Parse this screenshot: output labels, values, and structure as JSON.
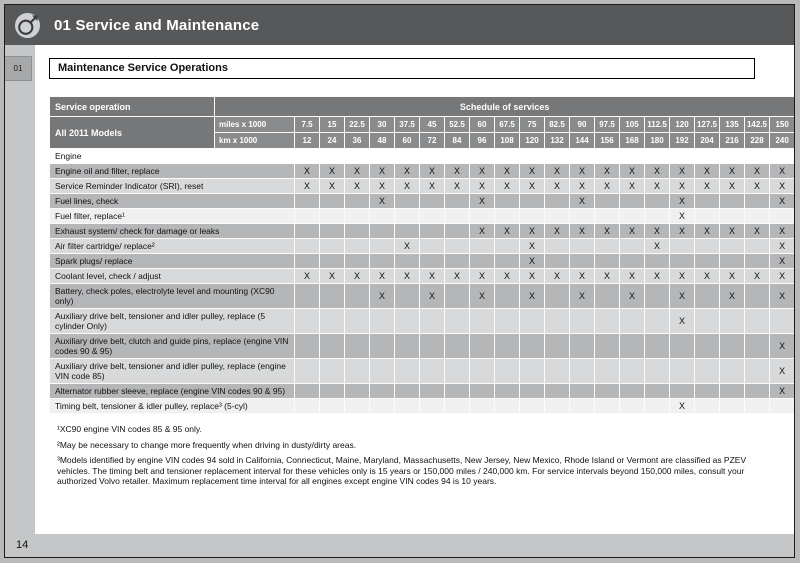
{
  "colors": {
    "header_bar": "#57585a",
    "page_gray": "#c5c6c8",
    "table_header_dark": "#757779",
    "table_header_mid": "#8a8b8d",
    "row_dark": "#b5b6b8",
    "row_light": "#d8d9da",
    "row_white": "#f0f0f0"
  },
  "header": {
    "title": "01 Service and Maintenance",
    "icon": "volvo-iron-mark-icon"
  },
  "side_tab_label": "01",
  "page_number": "14",
  "section_title": "Maintenance Service Operations",
  "table": {
    "corner_header": "Service operation",
    "models_header": "All 2011 Models",
    "schedule_header": "Schedule of services",
    "miles_label": "miles x 1000",
    "km_label": "km x 1000",
    "miles": [
      "7.5",
      "15",
      "22.5",
      "30",
      "37.5",
      "45",
      "52.5",
      "60",
      "67.5",
      "75",
      "82.5",
      "90",
      "97.5",
      "105",
      "112.5",
      "120",
      "127.5",
      "135",
      "142.5",
      "150"
    ],
    "km": [
      "12",
      "24",
      "36",
      "48",
      "60",
      "72",
      "84",
      "96",
      "108",
      "120",
      "132",
      "144",
      "156",
      "168",
      "180",
      "192",
      "204",
      "216",
      "228",
      "240"
    ],
    "mark": "X",
    "rows": [
      {
        "type": "section",
        "label": "Engine"
      },
      {
        "label": "Engine oil and filter, replace",
        "shade": "dark",
        "marks": [
          "X",
          "X",
          "X",
          "X",
          "X",
          "X",
          "X",
          "X",
          "X",
          "X",
          "X",
          "X",
          "X",
          "X",
          "X",
          "X",
          "X",
          "X",
          "X",
          "X"
        ]
      },
      {
        "label": "Service Reminder Indicator (SRI), reset",
        "shade": "light",
        "marks": [
          "X",
          "X",
          "X",
          "X",
          "X",
          "X",
          "X",
          "X",
          "X",
          "X",
          "X",
          "X",
          "X",
          "X",
          "X",
          "X",
          "X",
          "X",
          "X",
          "X"
        ]
      },
      {
        "label": "Fuel lines, check",
        "shade": "dark",
        "marks": [
          "",
          "",
          "",
          "X",
          "",
          "",
          "",
          "X",
          "",
          "",
          "",
          "X",
          "",
          "",
          "",
          "X",
          "",
          "",
          "",
          "X"
        ]
      },
      {
        "label": "Fuel filter, replace¹",
        "shade": "white",
        "marks": [
          "",
          "",
          "",
          "",
          "",
          "",
          "",
          "",
          "",
          "",
          "",
          "",
          "",
          "",
          "",
          "X",
          "",
          "",
          "",
          ""
        ]
      },
      {
        "label": "Exhaust system/ check for damage or leaks",
        "shade": "dark",
        "marks": [
          "",
          "",
          "",
          "",
          "",
          "",
          "",
          "X",
          "X",
          "X",
          "X",
          "X",
          "X",
          "X",
          "X",
          "X",
          "X",
          "X",
          "X",
          "X"
        ]
      },
      {
        "label": "Air filter cartridge/ replace²",
        "shade": "light",
        "marks": [
          "",
          "",
          "",
          "",
          "X",
          "",
          "",
          "",
          "",
          "X",
          "",
          "",
          "",
          "",
          "X",
          "",
          "",
          "",
          "",
          "X"
        ]
      },
      {
        "label": "Spark plugs/ replace",
        "shade": "dark",
        "marks": [
          "",
          "",
          "",
          "",
          "",
          "",
          "",
          "",
          "",
          "X",
          "",
          "",
          "",
          "",
          "",
          "",
          "",
          "",
          "",
          "X"
        ]
      },
      {
        "label": "Coolant level, check / adjust",
        "shade": "light",
        "marks": [
          "X",
          "X",
          "X",
          "X",
          "X",
          "X",
          "X",
          "X",
          "X",
          "X",
          "X",
          "X",
          "X",
          "X",
          "X",
          "X",
          "X",
          "X",
          "X",
          "X"
        ]
      },
      {
        "label": "Battery, check poles, electrolyte level and mounting (XC90 only)",
        "shade": "dark",
        "marks": [
          "",
          "",
          "",
          "X",
          "",
          "X",
          "",
          "X",
          "",
          "X",
          "",
          "X",
          "",
          "X",
          "",
          "X",
          "",
          "X",
          "",
          "X"
        ]
      },
      {
        "label": "Auxiliary drive belt, tensioner and idler pulley, replace (5 cylinder Only)",
        "shade": "light",
        "marks": [
          "",
          "",
          "",
          "",
          "",
          "",
          "",
          "",
          "",
          "",
          "",
          "",
          "",
          "",
          "",
          "X",
          "",
          "",
          "",
          ""
        ]
      },
      {
        "label": "Auxiliary drive belt, clutch and guide pins, replace (engine VIN codes 90 & 95)",
        "shade": "dark",
        "marks": [
          "",
          "",
          "",
          "",
          "",
          "",
          "",
          "",
          "",
          "",
          "",
          "",
          "",
          "",
          "",
          "",
          "",
          "",
          "",
          "X"
        ]
      },
      {
        "label": "Auxiliary drive belt, tensioner and idler pulley, replace (engine VIN code 85)",
        "shade": "light",
        "marks": [
          "",
          "",
          "",
          "",
          "",
          "",
          "",
          "",
          "",
          "",
          "",
          "",
          "",
          "",
          "",
          "",
          "",
          "",
          "",
          "X"
        ]
      },
      {
        "label": "Alternator rubber sleeve, replace (engine VIN codes 90 & 95)",
        "shade": "dark",
        "marks": [
          "",
          "",
          "",
          "",
          "",
          "",
          "",
          "",
          "",
          "",
          "",
          "",
          "",
          "",
          "",
          "",
          "",
          "",
          "",
          "X"
        ]
      },
      {
        "label": "Timing belt, tensioner & idler pulley, replace³ (5-cyl)",
        "shade": "white",
        "marks": [
          "",
          "",
          "",
          "",
          "",
          "",
          "",
          "",
          "",
          "",
          "",
          "",
          "",
          "",
          "",
          "X",
          "",
          "",
          "",
          ""
        ]
      }
    ]
  },
  "footnotes": [
    "¹XC90 engine VIN codes 85 & 95 only.",
    "²May be necessary to change more frequently when driving in dusty/dirty areas.",
    "³Models identified by engine VIN codes 94 sold in California, Connecticut, Maine, Maryland, Massachusetts, New Jersey, New Mexico, Rhode Island or Vermont are classified as PZEV vehicles. The timing belt and tensioner replacement interval for these vehicles only is 15 years or 150,000 miles / 240,000 km. For service intervals beyond 150,000 miles, consult your authorized Volvo retailer. Maximum replacement time interval for all engines except engine VIN codes 94 is 10 years."
  ]
}
